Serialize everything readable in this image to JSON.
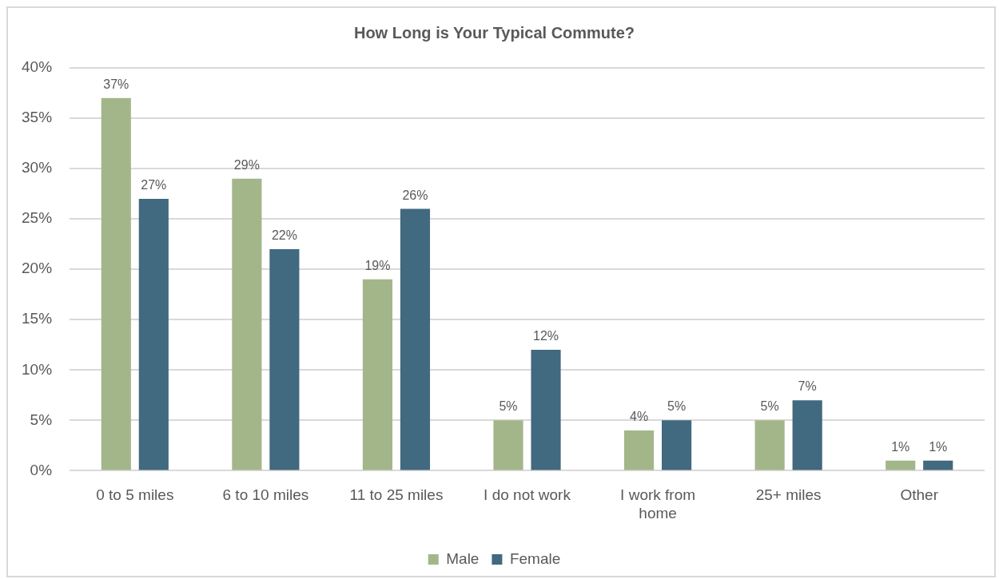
{
  "chart_data": {
    "type": "bar",
    "title": "How Long is Your Typical Commute?",
    "categories": [
      "0 to 5 miles",
      "6 to 10 miles",
      "11 to 25 miles",
      "I do not work",
      "I work from home",
      "25+ miles",
      "Other"
    ],
    "series": [
      {
        "name": "Male",
        "color": "#a3b68a",
        "values": [
          37,
          29,
          19,
          5,
          4,
          5,
          1
        ],
        "value_labels": [
          "37%",
          "29%",
          "19%",
          "5%",
          "4%",
          "5%",
          "1%"
        ]
      },
      {
        "name": "Female",
        "color": "#41697f",
        "values": [
          27,
          22,
          26,
          12,
          5,
          7,
          1
        ],
        "value_labels": [
          "27%",
          "22%",
          "26%",
          "12%",
          "5%",
          "7%",
          "1%"
        ]
      }
    ],
    "ylim": [
      0,
      40
    ],
    "yticks": [
      {
        "value": 0,
        "label": "0%"
      },
      {
        "value": 5,
        "label": "5%"
      },
      {
        "value": 10,
        "label": "10%"
      },
      {
        "value": 15,
        "label": "15%"
      },
      {
        "value": 20,
        "label": "20%"
      },
      {
        "value": 25,
        "label": "25%"
      },
      {
        "value": 30,
        "label": "30%"
      },
      {
        "value": 35,
        "label": "35%"
      },
      {
        "value": 40,
        "label": "40%"
      }
    ],
    "grid": "y",
    "legend": "bottom"
  }
}
